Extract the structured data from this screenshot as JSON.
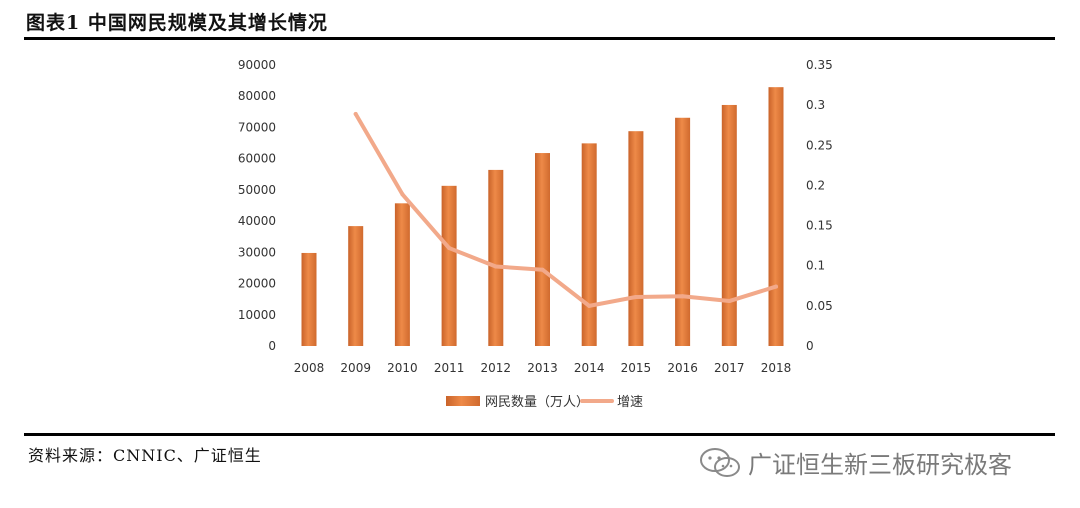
{
  "header": {
    "title": "图表1 中国网民规模及其增长情况"
  },
  "footer": {
    "source": "资料来源：CNNIC、广证恒生",
    "watermark": "广证恒生新三板研究极客"
  },
  "colors": {
    "bar": "#e07b39",
    "line": "#f2a98a",
    "rule": "#000000"
  },
  "icons": {
    "watermark_icon": "wechat-icon"
  },
  "chart_data": {
    "type": "bar",
    "title": "",
    "categories": [
      "2008",
      "2009",
      "2010",
      "2011",
      "2012",
      "2013",
      "2014",
      "2015",
      "2016",
      "2017",
      "2018"
    ],
    "series": [
      {
        "name": "网民数量（万人）",
        "type": "bar",
        "axis": "left",
        "values": [
          29800,
          38400,
          45700,
          51300,
          56400,
          61800,
          64900,
          68800,
          73100,
          77200,
          82900
        ]
      },
      {
        "name": "增速",
        "type": "line",
        "axis": "right",
        "values": [
          null,
          0.289,
          0.189,
          0.122,
          0.099,
          0.095,
          0.05,
          0.061,
          0.062,
          0.056,
          0.074
        ]
      }
    ],
    "y_left": {
      "min": 0,
      "max": 90000,
      "ticks": [
        "0",
        "10000",
        "20000",
        "30000",
        "40000",
        "50000",
        "60000",
        "70000",
        "80000",
        "90000"
      ]
    },
    "y_right": {
      "min": 0,
      "max": 0.35,
      "ticks": [
        "0",
        "0.05",
        "0.1",
        "0.15",
        "0.2",
        "0.25",
        "0.3",
        "0.35"
      ]
    },
    "grid": false,
    "legend_position": "bottom"
  }
}
